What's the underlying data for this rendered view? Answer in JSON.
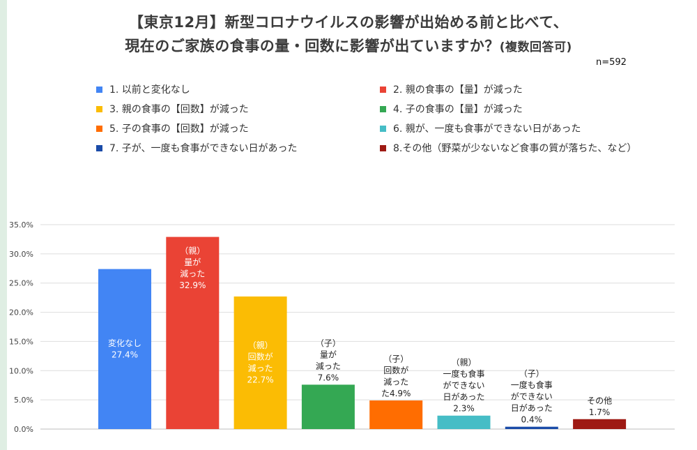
{
  "title_line1": "【東京12月】新型コロナウイルスの影響が出始める前と比べて、",
  "title_line2_main": "現在のご家族の食事の量・回数に影響が出ていますか？",
  "title_line2_suffix": "(複数回答可)",
  "sample_size": "n=592",
  "legend": [
    {
      "label": "1. 以前と変化なし",
      "color": "#4285f4"
    },
    {
      "label": "2. 親の食事の【量】が減った",
      "color": "#ea4335"
    },
    {
      "label": "3. 親の食事の【回数】が減った",
      "color": "#fbbc04"
    },
    {
      "label": "4. 子の食事の【量】が減った",
      "color": "#34a853"
    },
    {
      "label": "5. 子の食事の【回数】が減った",
      "color": "#ff6d01"
    },
    {
      "label": "6. 親が、一度も食事ができない日があった",
      "color": "#46bdc6"
    },
    {
      "label": "7. 子が、一度も食事ができない日があった",
      "color": "#1a4ba8"
    },
    {
      "label": "8.その他（野菜が少ないなど食事の質が落ちた、など）",
      "color": "#9e1a14"
    }
  ],
  "chart_data": {
    "type": "bar",
    "ylim": [
      0,
      35
    ],
    "yticks": [
      0,
      5,
      10,
      15,
      20,
      25,
      30,
      35
    ],
    "ytick_labels": [
      "0.0%",
      "5.0%",
      "10.0%",
      "15.0%",
      "20.0%",
      "25.0%",
      "30.0%",
      "35.0%"
    ],
    "grid": true,
    "legend_position": "top",
    "series": [
      {
        "value": 27.4,
        "color": "#4285f4",
        "label_lines": [
          "変化なし",
          "27.4%"
        ],
        "label_color": "#ffffff",
        "label_pos": "inside"
      },
      {
        "value": 32.9,
        "color": "#ea4335",
        "label_lines": [
          "（親）",
          "量が",
          "減った",
          "32.9%"
        ],
        "label_color": "#ffffff",
        "label_pos": "inside"
      },
      {
        "value": 22.7,
        "color": "#fbbc04",
        "label_lines": [
          "（親）",
          "回数が",
          "減った",
          "22.7%"
        ],
        "label_color": "#ffffff",
        "label_pos": "inside"
      },
      {
        "value": 7.6,
        "color": "#34a853",
        "label_lines": [
          "（子）",
          "量が",
          "減った",
          "7.6%"
        ],
        "label_color": "#222222",
        "label_pos": "above"
      },
      {
        "value": 4.9,
        "color": "#ff6d01",
        "label_lines": [
          "（子）",
          "回数が",
          "減った",
          "た4.9%"
        ],
        "label_color": "#222222",
        "label_pos": "above"
      },
      {
        "value": 2.3,
        "color": "#46bdc6",
        "label_lines": [
          "（親）",
          "一度も食事",
          "ができない",
          "日があった",
          "2.3%"
        ],
        "label_color": "#222222",
        "label_pos": "above"
      },
      {
        "value": 0.4,
        "color": "#1a4ba8",
        "label_lines": [
          "（子）",
          "一度も食事",
          "ができない",
          "日があった",
          "0.4%"
        ],
        "label_color": "#222222",
        "label_pos": "above"
      },
      {
        "value": 1.7,
        "color": "#9e1a14",
        "label_lines": [
          "その他",
          "1.7%"
        ],
        "label_color": "#222222",
        "label_pos": "above"
      }
    ]
  }
}
